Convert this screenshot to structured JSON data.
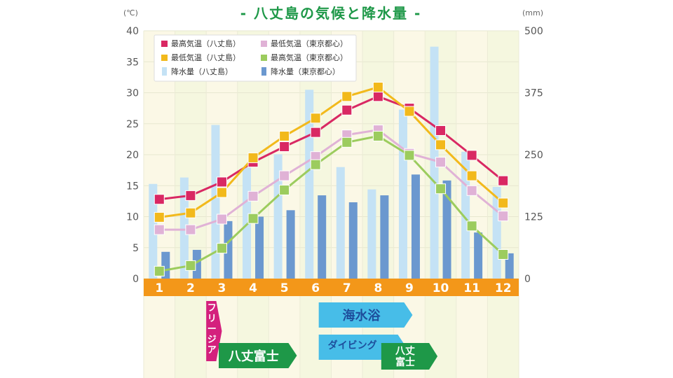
{
  "colors": {
    "hachijo_max": "#d92863",
    "hachijo_min": "#f2b91b",
    "tokyo_min": "#e0b2d6",
    "tokyo_max": "#9ccc5e",
    "hachijo_rain": "#c4e2f5",
    "tokyo_rain": "#6b98cf",
    "month_band": "#f39719",
    "title": "#1e9848",
    "freesia": "#d4207d",
    "hachijo_fuji": "#1e9848",
    "beach": "#47bde8",
    "diving": "#47bde8"
  },
  "chart_data": {
    "type": "bar+line",
    "title": "- 八丈島の気候と降水量 -",
    "left_axis_unit": "(℃)",
    "right_axis_unit": "(mm)",
    "categories": [
      "1",
      "2",
      "3",
      "4",
      "5",
      "6",
      "7",
      "8",
      "9",
      "10",
      "11",
      "12"
    ],
    "y_left": {
      "min": 0,
      "max": 40,
      "ticks": [
        "0",
        "5",
        "10",
        "15",
        "20",
        "25",
        "30",
        "35",
        "40"
      ]
    },
    "y_right": {
      "min": 0,
      "max": 500,
      "ticks": [
        "0",
        "125",
        "250",
        "375",
        "500"
      ]
    },
    "legend": [
      {
        "label": "最高気温（八丈島）",
        "color_key": "hachijo_max",
        "shape": "square"
      },
      {
        "label": "最低気温（東京都心）",
        "color_key": "tokyo_min",
        "shape": "square"
      },
      {
        "label": "最低気温（八丈島）",
        "color_key": "hachijo_min",
        "shape": "square"
      },
      {
        "label": "最高気温（東京都心）",
        "color_key": "tokyo_max",
        "shape": "square"
      },
      {
        "label": "降水量（八丈島）",
        "color_key": "hachijo_rain",
        "shape": "bar"
      },
      {
        "label": "降水量（東京都心）",
        "color_key": "tokyo_rain",
        "shape": "bar"
      }
    ],
    "bars": [
      {
        "name": "降水量（八丈島）",
        "color_key": "hachijo_rain",
        "offset": -1,
        "values": [
          191,
          204,
          310,
          224,
          251,
          381,
          225,
          180,
          341,
          468,
          256,
          185
        ]
      },
      {
        "name": "降水量（東京都心）",
        "color_key": "tokyo_rain",
        "offset": 1,
        "values": [
          54,
          58,
          116,
          125,
          138,
          168,
          154,
          168,
          210,
          198,
          93,
          51
        ]
      }
    ],
    "lines": [
      {
        "name": "最高気温（八丈島）",
        "color_key": "hachijo_max",
        "values": [
          12.8,
          13.4,
          15.6,
          18.8,
          21.3,
          23.6,
          27.2,
          29.4,
          27.5,
          23.9,
          19.9,
          15.8
        ]
      },
      {
        "name": "最低気温（八丈島）",
        "color_key": "hachijo_min",
        "values": [
          9.9,
          10.6,
          13.9,
          19.5,
          23.0,
          25.9,
          29.4,
          30.9,
          27.0,
          21.6,
          16.6,
          12.2
        ]
      },
      {
        "name": "最低気温（東京都心）",
        "color_key": "tokyo_min",
        "values": [
          7.9,
          7.9,
          9.6,
          13.3,
          16.6,
          19.7,
          23.2,
          24.0,
          20.2,
          18.8,
          14.2,
          10.1
        ]
      },
      {
        "name": "最高気温（東京都心）",
        "color_key": "tokyo_max",
        "values": [
          1.2,
          2.1,
          4.9,
          9.7,
          14.3,
          18.4,
          22.0,
          23.0,
          19.9,
          14.5,
          8.5,
          3.9
        ]
      }
    ]
  },
  "seasons": [
    {
      "label": "フリージア",
      "color_key": "freesia",
      "vertical": true,
      "start": 3.0,
      "end": 3.5,
      "row": 0
    },
    {
      "label": "八丈富士",
      "color_key": "hachijo_fuji",
      "vertical": false,
      "start": 3.4,
      "end": 5.9,
      "row": 2
    },
    {
      "label": "海水浴",
      "color_key": "beach",
      "vertical": false,
      "start": 6.6,
      "end": 9.6,
      "row": 1
    },
    {
      "label": "ダイビング",
      "color_key": "diving",
      "vertical": false,
      "start": 6.6,
      "end": 9.4,
      "row": 3
    },
    {
      "label": "八丈 富士",
      "color_key": "hachijo_fuji",
      "vertical": false,
      "stacked": true,
      "start": 8.6,
      "end": 10.4,
      "row": 4
    }
  ]
}
